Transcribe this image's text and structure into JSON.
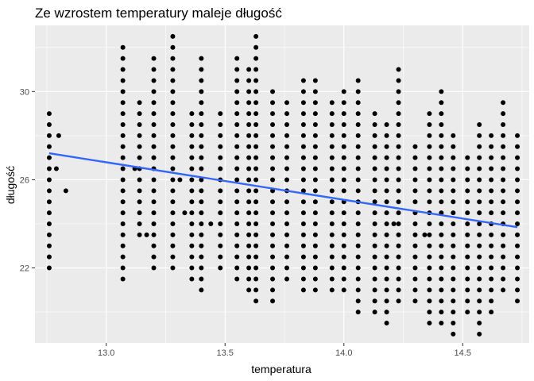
{
  "chart_data": {
    "type": "scatter",
    "title": "Ze wzrostem temperatury maleje długość",
    "xlabel": "temperatura",
    "ylabel": "długość",
    "xlim": [
      12.7,
      14.78
    ],
    "ylim": [
      18.6,
      33.0
    ],
    "x_ticks": [
      13.0,
      13.5,
      14.0,
      14.5
    ],
    "x_tick_labels": [
      "13.0",
      "13.5",
      "14.0",
      "14.5"
    ],
    "y_ticks": [
      22,
      26,
      30
    ],
    "y_tick_labels": [
      "22",
      "26",
      "30"
    ],
    "grid": true,
    "legend": "none",
    "point_color": "#000000",
    "panel_background": "#ebebeb",
    "grid_color": "#ffffff",
    "trend_line": {
      "type": "linear fit",
      "color": "#3366ff",
      "x": [
        12.76,
        14.73
      ],
      "y": [
        27.2,
        23.85
      ]
    },
    "series": [
      {
        "columns": [
          {
            "x": 12.76,
            "y": [
              22.0,
              29.0
            ]
          },
          {
            "x": 13.07,
            "y": [
              21.5,
              32.0
            ]
          },
          {
            "x": 13.14,
            "y": [
              23.5,
              29.5
            ]
          },
          {
            "x": 13.2,
            "y": [
              22.0,
              31.5
            ]
          },
          {
            "x": 13.28,
            "y": [
              22.0,
              32.5
            ]
          },
          {
            "x": 13.36,
            "y": [
              21.5,
              29.0
            ]
          },
          {
            "x": 13.4,
            "y": [
              21.0,
              31.5
            ]
          },
          {
            "x": 13.48,
            "y": [
              22.0,
              29.0
            ]
          },
          {
            "x": 13.55,
            "y": [
              21.5,
              31.5
            ]
          },
          {
            "x": 13.6,
            "y": [
              21.0,
              31.0
            ]
          },
          {
            "x": 13.63,
            "y": [
              20.5,
              32.5
            ]
          },
          {
            "x": 13.7,
            "y": [
              20.5,
              30.0
            ]
          },
          {
            "x": 13.76,
            "y": [
              21.5,
              29.5
            ]
          },
          {
            "x": 13.83,
            "y": [
              21.0,
              30.5
            ]
          },
          {
            "x": 13.88,
            "y": [
              21.0,
              30.5
            ]
          },
          {
            "x": 13.95,
            "y": [
              21.0,
              29.5
            ]
          },
          {
            "x": 14.0,
            "y": [
              21.0,
              30.0
            ]
          },
          {
            "x": 14.06,
            "y": [
              20.0,
              30.5
            ]
          },
          {
            "x": 14.13,
            "y": [
              20.0,
              29.0
            ]
          },
          {
            "x": 14.18,
            "y": [
              19.5,
              28.5
            ]
          },
          {
            "x": 14.23,
            "y": [
              20.5,
              31.0
            ]
          },
          {
            "x": 14.3,
            "y": [
              20.5,
              27.5
            ]
          },
          {
            "x": 14.36,
            "y": [
              19.5,
              29.0
            ]
          },
          {
            "x": 14.41,
            "y": [
              19.5,
              30.0
            ]
          },
          {
            "x": 14.46,
            "y": [
              19.0,
              28.0
            ]
          },
          {
            "x": 14.52,
            "y": [
              20.0,
              27.0
            ]
          },
          {
            "x": 14.57,
            "y": [
              19.0,
              28.5
            ]
          },
          {
            "x": 14.62,
            "y": [
              20.0,
              28.0
            ]
          },
          {
            "x": 14.67,
            "y": [
              21.0,
              29.5
            ]
          },
          {
            "x": 14.73,
            "y": [
              20.5,
              28.0
            ]
          }
        ],
        "extra_points": [
          {
            "x": 12.83,
            "y": 25.5
          },
          {
            "x": 12.8,
            "y": 28.0
          },
          {
            "x": 12.79,
            "y": 26.5
          },
          {
            "x": 13.12,
            "y": 26.5
          },
          {
            "x": 13.17,
            "y": 23.5
          },
          {
            "x": 13.31,
            "y": 26.0
          },
          {
            "x": 13.33,
            "y": 24.5
          },
          {
            "x": 13.44,
            "y": 24.0
          },
          {
            "x": 14.21,
            "y": 24.0
          },
          {
            "x": 14.34,
            "y": 23.5
          }
        ]
      }
    ]
  }
}
